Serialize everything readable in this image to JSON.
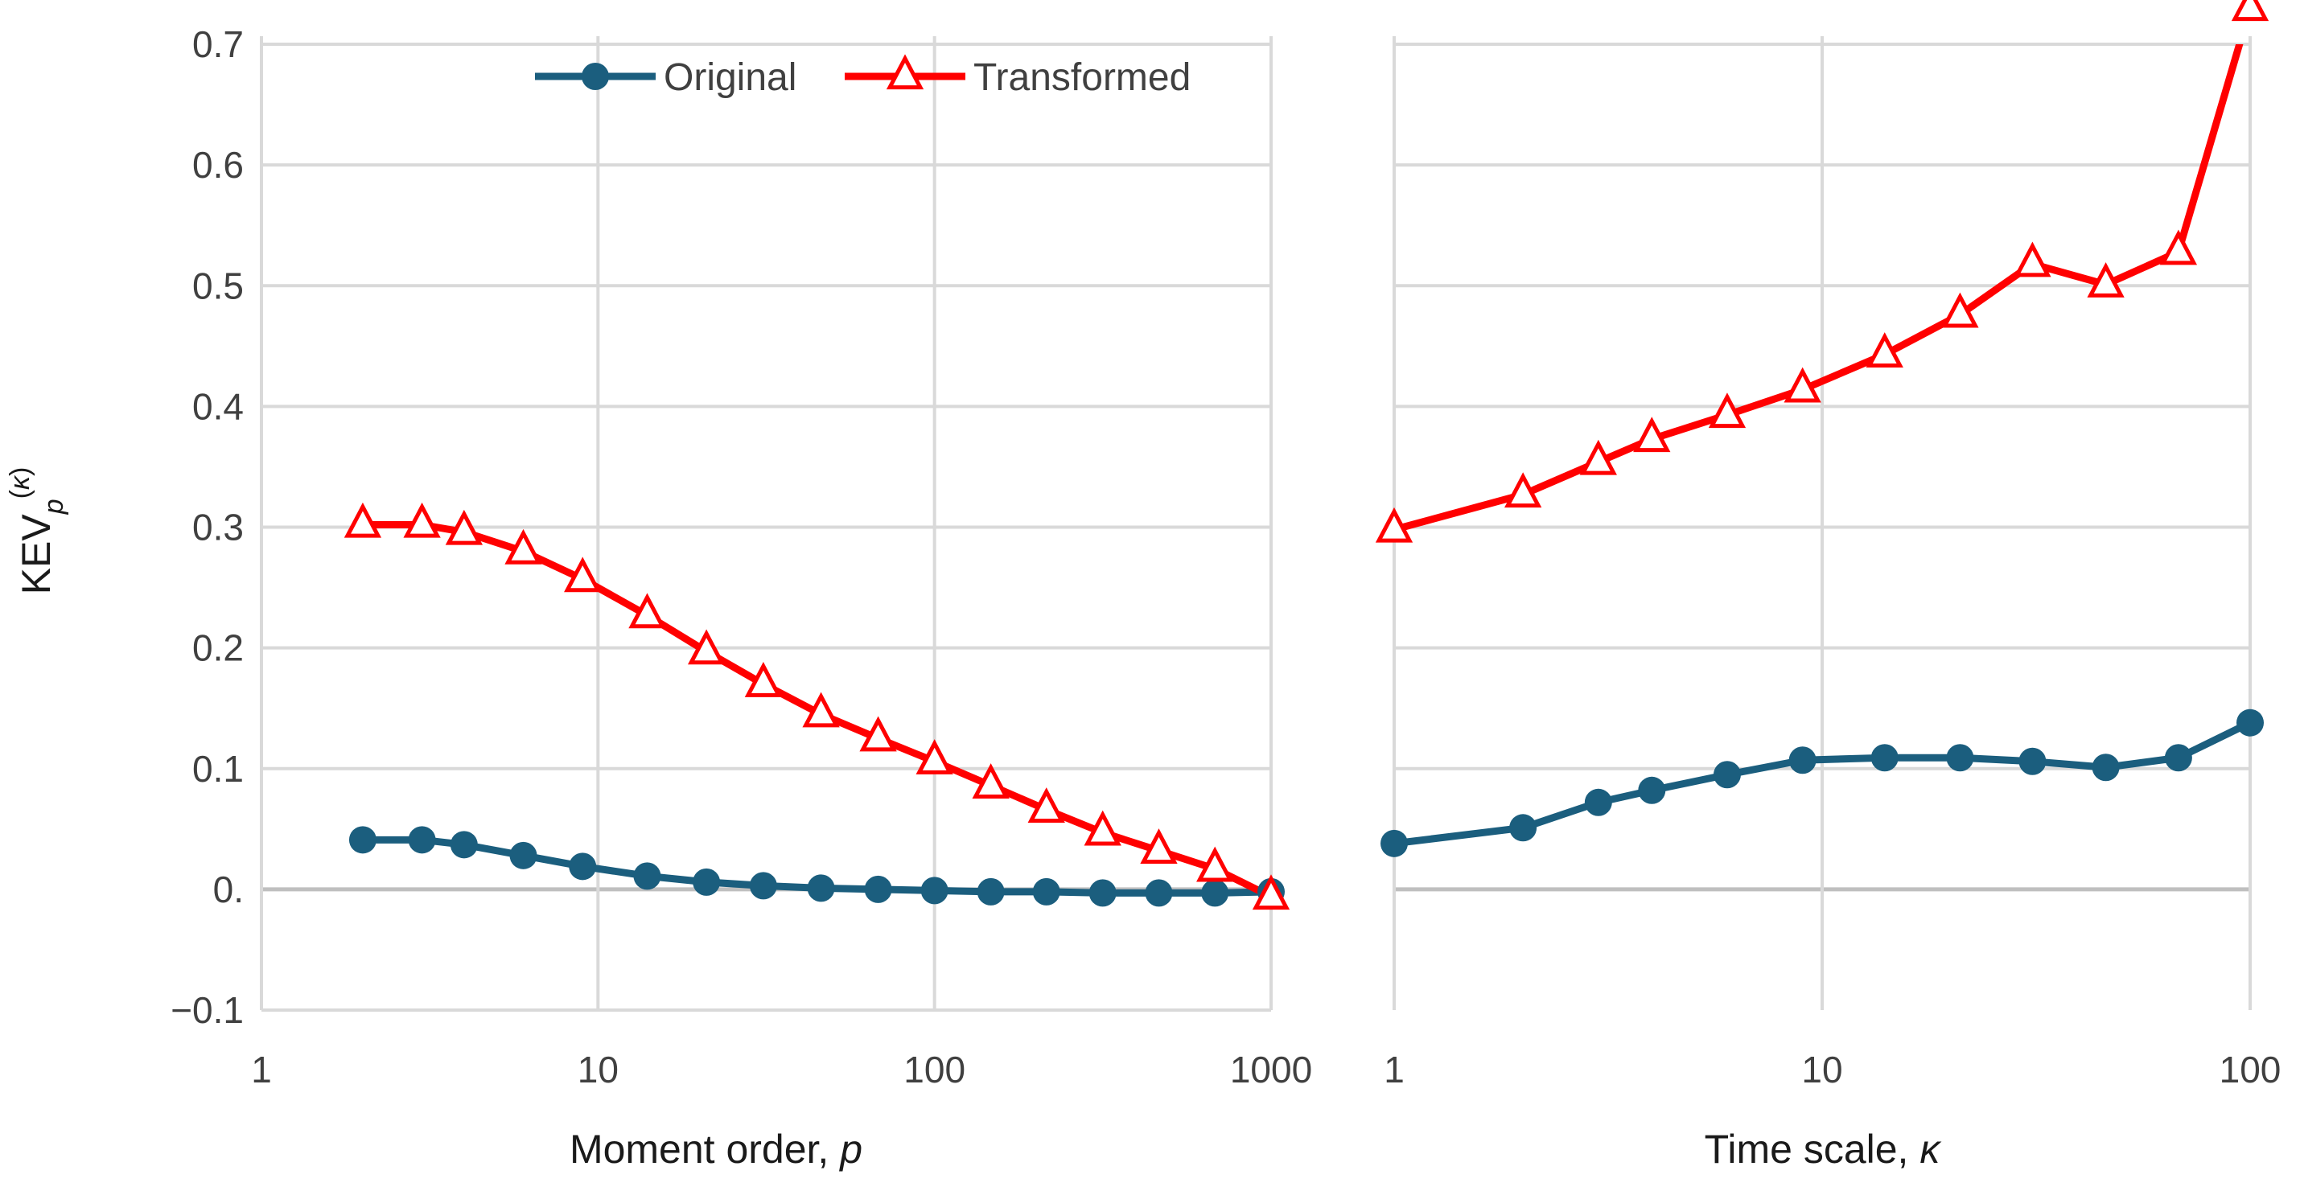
{
  "chart_data": [
    {
      "type": "line",
      "xscale": "log",
      "xlabel": "Moment order, p",
      "ylabel": "KEVp(κ)",
      "xlim": [
        1,
        1000
      ],
      "ylim": [
        -0.1,
        0.7
      ],
      "xticks": [
        "1",
        "10",
        "100",
        "1000"
      ],
      "yticks": [
        "−0.1",
        "0.",
        "0.1",
        "0.2",
        "0.3",
        "0.4",
        "0.5",
        "0.6",
        "0.7"
      ],
      "grid": true,
      "legend": "top",
      "series": [
        {
          "name": "Original",
          "color": "#1b5e7e",
          "marker": "circle",
          "x": [
            2,
            3,
            4,
            6,
            9,
            14,
            21,
            31,
            46,
            68,
            100,
            147,
            215,
            316,
            464,
            681,
            1000
          ],
          "y": [
            0.041,
            0.041,
            0.037,
            0.028,
            0.019,
            0.011,
            0.006,
            0.003,
            0.001,
            0.0,
            -0.001,
            -0.002,
            -0.002,
            -0.003,
            -0.003,
            -0.003,
            -0.002
          ]
        },
        {
          "name": "Transformed",
          "color": "#ff0000",
          "marker": "triangle",
          "x": [
            2,
            3,
            4,
            6,
            9,
            14,
            21,
            31,
            46,
            68,
            100,
            147,
            215,
            316,
            464,
            681,
            1000
          ],
          "y": [
            0.302,
            0.302,
            0.296,
            0.28,
            0.257,
            0.227,
            0.197,
            0.17,
            0.145,
            0.125,
            0.106,
            0.086,
            0.066,
            0.047,
            0.032,
            0.017,
            -0.006
          ]
        }
      ]
    },
    {
      "type": "line",
      "xscale": "log",
      "xlabel": "Time scale, κ",
      "xlim": [
        1,
        100
      ],
      "ylim": [
        -0.1,
        0.7
      ],
      "xticks": [
        "1",
        "10",
        "100"
      ],
      "grid": true,
      "series": [
        {
          "name": "Original",
          "color": "#1b5e7e",
          "marker": "circle",
          "x": [
            1,
            2,
            3,
            4,
            6,
            9,
            14,
            21,
            31,
            46,
            68,
            100
          ],
          "y": [
            0.038,
            0.051,
            0.072,
            0.082,
            0.095,
            0.107,
            0.109,
            0.109,
            0.106,
            0.101,
            0.109,
            0.138
          ]
        },
        {
          "name": "Transformed",
          "color": "#ff0000",
          "marker": "triangle",
          "x": [
            1,
            2,
            3,
            4,
            6,
            9,
            14,
            21,
            31,
            46,
            68,
            100
          ],
          "y": [
            0.298,
            0.327,
            0.354,
            0.373,
            0.393,
            0.414,
            0.443,
            0.476,
            0.518,
            0.501,
            0.528,
            0.73
          ]
        }
      ]
    }
  ]
}
